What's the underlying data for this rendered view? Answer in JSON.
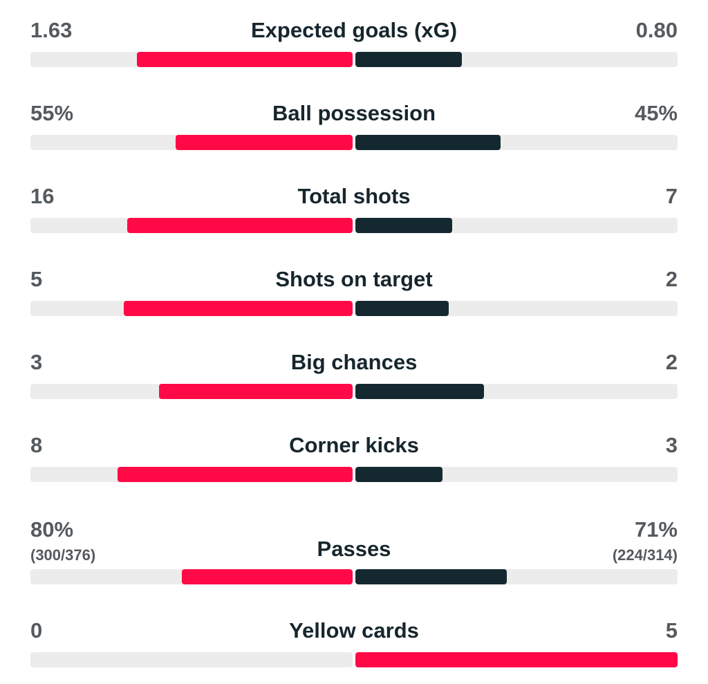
{
  "colors": {
    "home": "#ff0a47",
    "away": "#14282f",
    "track": "#ececec",
    "value_text": "#545a5e",
    "label_text": "#17262d"
  },
  "stats": [
    {
      "label": "Expected goals (xG)",
      "home": "1.63",
      "away": "0.80",
      "home_share": 0.67,
      "away_share": 0.33,
      "away_color": "away"
    },
    {
      "label": "Ball possession",
      "home": "55%",
      "away": "45%",
      "home_share": 0.55,
      "away_share": 0.45,
      "away_color": "away"
    },
    {
      "label": "Total shots",
      "home": "16",
      "away": "7",
      "home_share": 0.7,
      "away_share": 0.3,
      "away_color": "away"
    },
    {
      "label": "Shots on target",
      "home": "5",
      "away": "2",
      "home_share": 0.71,
      "away_share": 0.29,
      "away_color": "away"
    },
    {
      "label": "Big chances",
      "home": "3",
      "away": "2",
      "home_share": 0.6,
      "away_share": 0.4,
      "away_color": "away"
    },
    {
      "label": "Corner kicks",
      "home": "8",
      "away": "3",
      "home_share": 0.73,
      "away_share": 0.27,
      "away_color": "away"
    },
    {
      "label": "Passes",
      "home": "80%",
      "away": "71%",
      "home_sub": "(300/376)",
      "away_sub": "(224/314)",
      "home_share": 0.53,
      "away_share": 0.47,
      "away_color": "away"
    },
    {
      "label": "Yellow cards",
      "home": "0",
      "away": "5",
      "home_share": 0,
      "away_share": 1,
      "away_color": "home"
    }
  ]
}
